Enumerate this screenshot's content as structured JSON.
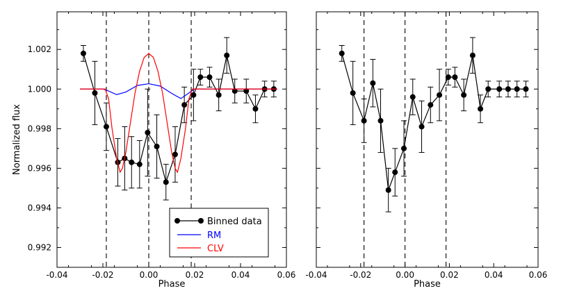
{
  "chart_data": [
    {
      "type": "line",
      "panel": "left",
      "xlabel": "Phase",
      "ylabel": "Normalized flux",
      "xlim": [
        -0.04,
        0.06
      ],
      "ylim": [
        0.991,
        1.0039
      ],
      "xticks": [
        -0.04,
        -0.02,
        0.0,
        0.02,
        0.04,
        0.06
      ],
      "xtick_labels": [
        "-0.04",
        "-0.02",
        "0.00",
        "0.02",
        "0.04",
        "0.06"
      ],
      "yticks": [
        0.992,
        0.994,
        0.996,
        0.998,
        1.0,
        1.002
      ],
      "ytick_labels": [
        "0.992",
        "0.994",
        "0.996",
        "0.998",
        "1.000",
        "1.002"
      ],
      "vlines": [
        -0.0185,
        0.0,
        0.0185
      ],
      "legend": {
        "position": "bottom-center",
        "entries": [
          "Binned data",
          "RM",
          "CLV"
        ]
      },
      "series": [
        {
          "name": "Binned data",
          "color": "#000000",
          "style": "markers+line+errorbars",
          "x": [
            -0.0285,
            -0.0235,
            -0.0185,
            -0.0135,
            -0.0105,
            -0.0075,
            -0.004,
            -0.0005,
            0.0035,
            0.0075,
            0.0115,
            0.0155,
            0.0195,
            0.0225,
            0.0265,
            0.0305,
            0.034,
            0.0375,
            0.0425,
            0.0465,
            0.0505,
            0.0545
          ],
          "y": [
            1.0018,
            0.9998,
            0.9981,
            0.9963,
            0.9965,
            0.9963,
            0.9962,
            0.9978,
            0.9971,
            0.9953,
            0.9967,
            0.9992,
            0.9997,
            1.0006,
            1.0006,
            0.9997,
            1.0017,
            0.9999,
            0.9999,
            0.999,
            1.0,
            1.0
          ],
          "yerr": [
            0.0004,
            0.0016,
            0.0012,
            0.0012,
            0.0016,
            0.0013,
            0.0012,
            0.0022,
            0.0016,
            0.0009,
            0.0014,
            0.0009,
            0.0013,
            0.0004,
            0.0005,
            0.0008,
            0.0009,
            0.0006,
            0.0006,
            0.0007,
            0.0004,
            0.0004
          ]
        },
        {
          "name": "RM",
          "color": "#0000ff",
          "style": "line",
          "x": [
            -0.03,
            -0.02,
            -0.0185,
            -0.014,
            -0.01,
            -0.005,
            0.0,
            0.005,
            0.01,
            0.014,
            0.0185,
            0.02,
            0.056
          ],
          "y": [
            1.0,
            1.0,
            0.99995,
            0.99972,
            0.99985,
            1.00018,
            1.00027,
            1.00015,
            0.99978,
            0.99952,
            0.99988,
            1.0,
            1.0
          ]
        },
        {
          "name": "CLV",
          "color": "#ff0000",
          "style": "line",
          "x": [
            -0.03,
            -0.019,
            -0.0175,
            -0.016,
            -0.014,
            -0.0125,
            -0.0115,
            -0.01,
            -0.008,
            -0.006,
            -0.004,
            -0.002,
            0.0,
            0.002,
            0.004,
            0.006,
            0.008,
            0.01,
            0.0115,
            0.0125,
            0.014,
            0.016,
            0.0175,
            0.019,
            0.056
          ],
          "y": [
            1.0,
            1.0,
            0.9995,
            0.998,
            0.9965,
            0.9958,
            0.996,
            0.9968,
            0.9983,
            0.9998,
            1.0009,
            1.0016,
            1.0018,
            1.0016,
            1.0009,
            0.9998,
            0.9983,
            0.9968,
            0.996,
            0.9958,
            0.9965,
            0.998,
            0.9995,
            1.0,
            1.0
          ]
        }
      ]
    },
    {
      "type": "line",
      "panel": "right",
      "xlabel": "Phase",
      "ylabel": "",
      "xlim": [
        -0.04,
        0.06
      ],
      "ylim": [
        0.991,
        1.0039
      ],
      "xticks": [
        -0.04,
        -0.02,
        0.0,
        0.02,
        0.04,
        0.06
      ],
      "xtick_labels": [
        "-0.04",
        "-0.02",
        "0.00",
        "0.02",
        "0.04",
        "0.06"
      ],
      "yticks": [
        0.992,
        0.994,
        0.996,
        0.998,
        1.0,
        1.002
      ],
      "vlines": [
        -0.0185,
        0.0,
        0.0185
      ],
      "series": [
        {
          "name": "",
          "color": "#000000",
          "style": "markers+line+errorbars",
          "x": [
            -0.0285,
            -0.0235,
            -0.0185,
            -0.0145,
            -0.011,
            -0.0075,
            -0.0045,
            -0.0005,
            0.0035,
            0.0075,
            0.0115,
            0.0155,
            0.0195,
            0.0225,
            0.0265,
            0.0305,
            0.034,
            0.0375,
            0.0425,
            0.0465,
            0.0505,
            0.0545
          ],
          "y": [
            1.0018,
            0.9998,
            0.9984,
            1.0003,
            0.9984,
            0.9949,
            0.9958,
            0.997,
            0.9996,
            0.9981,
            0.9992,
            0.9997,
            1.0006,
            1.0006,
            0.9997,
            1.0017,
            0.999,
            1.0,
            1.0,
            1.0,
            1.0,
            1.0
          ],
          "yerr": [
            0.0004,
            0.0016,
            0.0011,
            0.0012,
            0.0016,
            0.0011,
            0.0012,
            0.0014,
            0.0009,
            0.0013,
            0.0009,
            0.0013,
            0.0004,
            0.0005,
            0.0008,
            0.0009,
            0.0007,
            0.0004,
            0.0004,
            0.0004,
            0.0004,
            0.0004
          ]
        }
      ]
    }
  ]
}
